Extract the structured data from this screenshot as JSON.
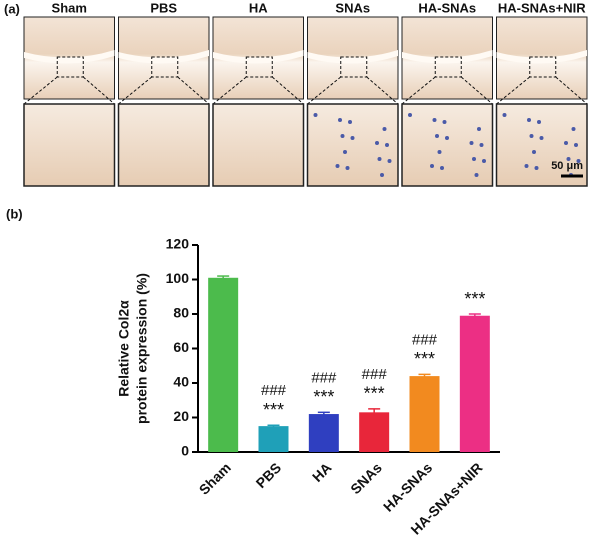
{
  "panel_a": {
    "label": "(a)",
    "groups": [
      "Sham",
      "PBS",
      "HA",
      "SNAs",
      "HA-SNAs",
      "HA-SNAs+NIR"
    ],
    "scale_bar": "50 μm"
  },
  "chart_data": {
    "type": "bar",
    "panel_label": "(b)",
    "ylabel": [
      "Relative Col2α",
      "protein expression (%)"
    ],
    "categories": [
      "Sham",
      "PBS",
      "HA",
      "SNAs",
      "HA-SNAs",
      "HA-SNAs+NIR"
    ],
    "values": [
      101,
      15,
      22,
      23,
      44,
      79
    ],
    "errors": [
      1,
      0.5,
      1,
      2,
      1,
      1
    ],
    "colors": [
      "#4cbb4c",
      "#1fa0b8",
      "#2f3fc0",
      "#e8263a",
      "#f28a1f",
      "#ec2f84"
    ],
    "stars": [
      null,
      "***",
      "***",
      "***",
      "***",
      "***"
    ],
    "hashes": [
      null,
      "###",
      "###",
      "###",
      "###",
      null
    ],
    "ylim": [
      0,
      120
    ],
    "yticks": [
      0,
      20,
      40,
      60,
      80,
      100,
      120
    ]
  }
}
